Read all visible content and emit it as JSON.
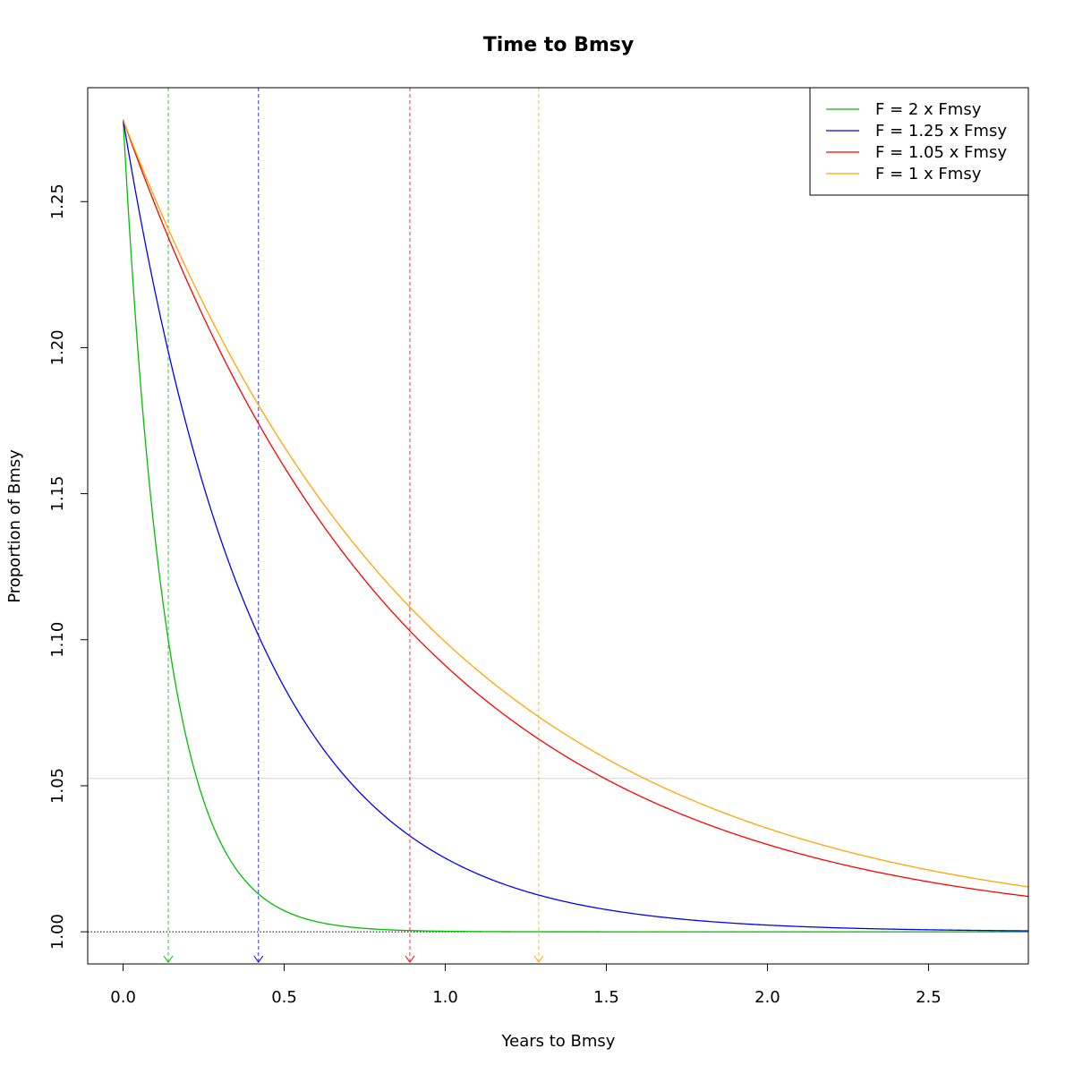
{
  "chart_data": {
    "type": "line",
    "title": "Time to Bmsy",
    "xlabel": "Years to Bmsy",
    "ylabel": "Proportion of Bmsy",
    "xlim": [
      -0.11,
      2.81
    ],
    "ylim": [
      0.989,
      1.289
    ],
    "x_ticks": [
      "0.0",
      "0.5",
      "1.0",
      "1.5",
      "2.0",
      "2.5"
    ],
    "y_ticks": [
      "1.00",
      "1.05",
      "1.10",
      "1.15",
      "1.20",
      "1.25"
    ],
    "x_tick_values": [
      0,
      0.5,
      1.0,
      1.5,
      2.0,
      2.5
    ],
    "y_tick_values": [
      1.0,
      1.05,
      1.1,
      1.15,
      1.2,
      1.25
    ],
    "start_value": 1.278,
    "reference_lines": {
      "bmsy_level": 1.0,
      "target_level": 1.0525
    },
    "legend_position": "top-right",
    "series": [
      {
        "name": "F = 2 x Fmsy",
        "color": "#00c000",
        "decay_rate": 7.3,
        "time_to_target": 0.14
      },
      {
        "name": "F = 1.25 x Fmsy",
        "color": "#0000ff",
        "decay_rate": 2.4,
        "time_to_target": 0.42
      },
      {
        "name": "F = 1.05 x Fmsy",
        "color": "#ff0000",
        "decay_rate": 1.115,
        "time_to_target": 0.89
      },
      {
        "name": "F = 1 x Fmsy",
        "color": "#ffa500",
        "decay_rate": 1.03,
        "time_to_target": 1.29
      }
    ]
  }
}
